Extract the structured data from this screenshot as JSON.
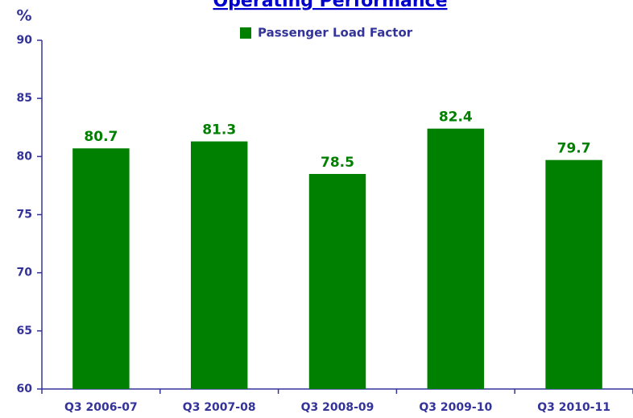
{
  "chart_data": {
    "type": "bar",
    "title": "Operating Performance",
    "y_label": "%",
    "categories": [
      "Q3 2006-07",
      "Q3 2007-08",
      "Q3 2008-09",
      "Q3 2009-10",
      "Q3 2010-11"
    ],
    "series": [
      {
        "name": "Passenger Load Factor",
        "color": "#008000",
        "values": [
          80.7,
          81.3,
          78.5,
          82.4,
          79.7
        ]
      }
    ],
    "ylim": [
      60,
      90
    ],
    "yticks": [
      60,
      65,
      70,
      75,
      80,
      85,
      90
    ]
  }
}
